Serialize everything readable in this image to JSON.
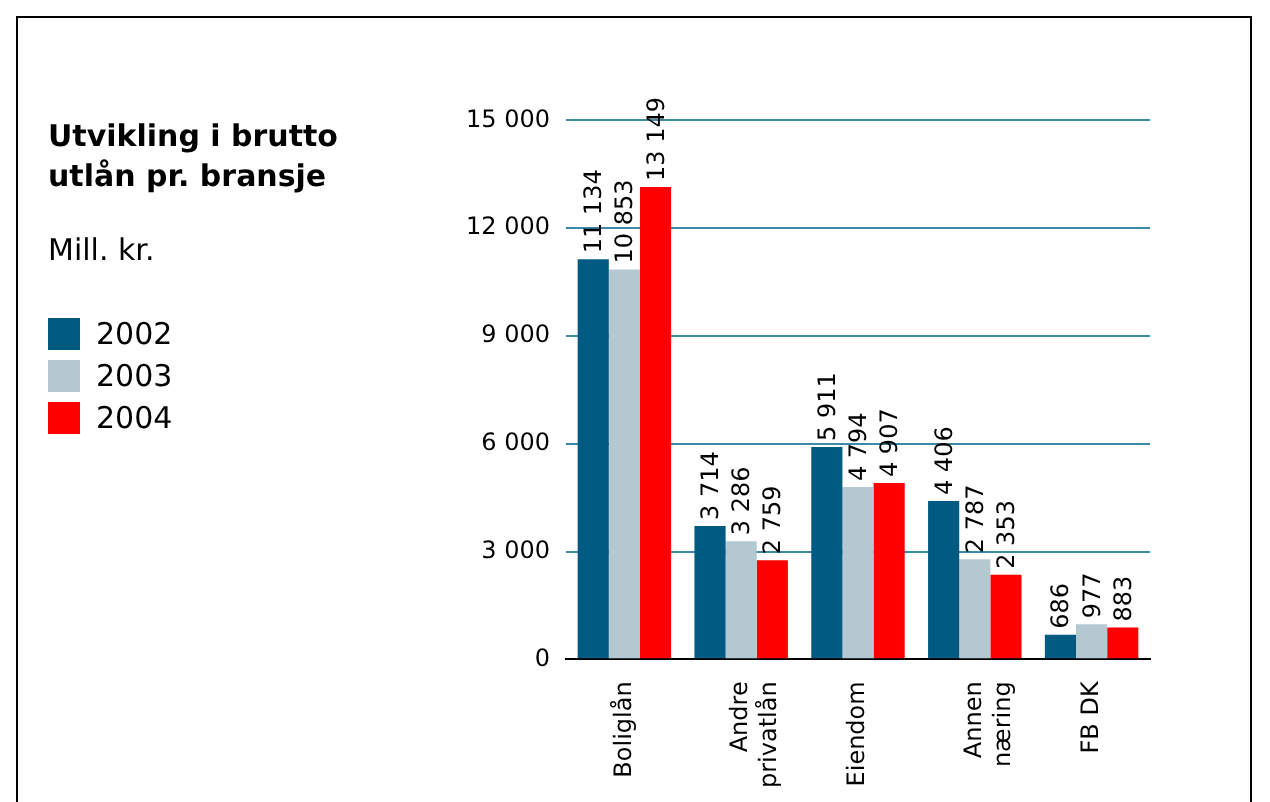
{
  "chart_data": {
    "type": "bar",
    "title": "Utvikling i brutto utlån pr. bransje",
    "subtitle": "Mill. kr.",
    "categories": [
      "Boliglån",
      "Andre privatlån",
      "Eiendom",
      "Annen næring",
      "FB DK"
    ],
    "series": [
      {
        "name": "2002",
        "color": "#005a82",
        "values": [
          11134,
          3714,
          5911,
          4406,
          686
        ],
        "value_labels": [
          "11 134",
          "3 714",
          "5 911",
          "4 406",
          "686"
        ]
      },
      {
        "name": "2003",
        "color": "#b4c8d2",
        "values": [
          10853,
          3286,
          4794,
          2787,
          977
        ],
        "value_labels": [
          "10 853",
          "3 286",
          "4 794",
          "2 787",
          "977"
        ]
      },
      {
        "name": "2004",
        "color": "#ff0000",
        "values": [
          13149,
          2759,
          4907,
          2353,
          883
        ],
        "value_labels": [
          "13 149",
          "2 759",
          "4 907",
          "2 353",
          "883"
        ]
      }
    ],
    "ylim": [
      0,
      15000
    ],
    "yticks": [
      {
        "value": 0,
        "label": "0"
      },
      {
        "value": 3000,
        "label": "3 000"
      },
      {
        "value": 6000,
        "label": "6 000"
      },
      {
        "value": 9000,
        "label": "9 000"
      },
      {
        "value": 12000,
        "label": "12 000"
      },
      {
        "value": 15000,
        "label": "15 000"
      }
    ],
    "grid": "y",
    "legend": "left"
  }
}
